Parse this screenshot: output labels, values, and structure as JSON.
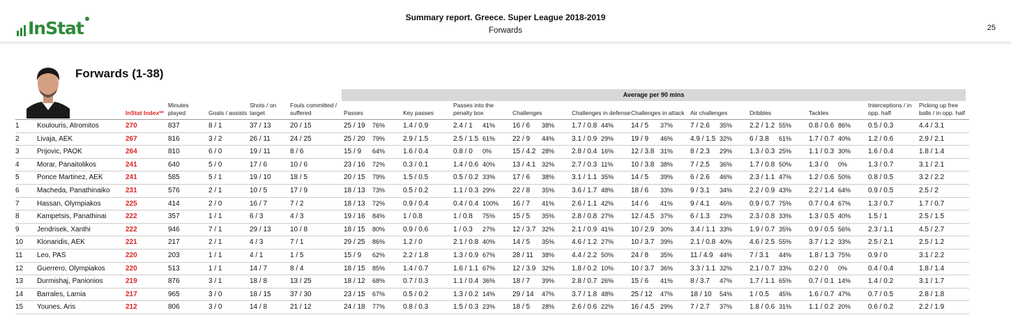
{
  "header": {
    "title": "Summary report. Greece. Super League 2018-2019",
    "subtitle": "Forwards",
    "page_number": "25",
    "logo_text": "InStat"
  },
  "section_title": "Forwards (1-38)",
  "group_header": "Average per 90 mins",
  "columns": {
    "instat_index": "InStat Index**",
    "minutes": "Minutes played",
    "goals": "Goals / assists",
    "shots": "Shots / on target",
    "fouls": "Fouls committed / suffered",
    "passes": "Passes",
    "key_passes": "Key passes",
    "passes_box": "Passes into the penalty box",
    "challenges": "Challenges",
    "ch_def": "Challenges in defense",
    "ch_att": "Challenges in attack",
    "air": "Air challenges",
    "dribbles": "Dribbles",
    "tackles": "Tackles",
    "interceptions": "Interceptions / in opp. half",
    "free_balls": "Picking up free balls / in opp. half"
  },
  "rows": [
    {
      "n": "1",
      "name": "Koulouris, Atromitos",
      "idx": "270",
      "min": "837",
      "ga": "8 / 1",
      "shots": "37 / 13",
      "fouls": "20 / 15",
      "passes": "25 / 19",
      "passes_p": "76%",
      "kp": "1.4 / 0.9",
      "pb": "2.4 / 1",
      "pb_p": "41%",
      "ch": "16 / 6",
      "ch_p": "38%",
      "cd": "1.7 / 0.8",
      "cd_p": "44%",
      "ca": "14 / 5",
      "ca_p": "37%",
      "air": "7 / 2.6",
      "air_p": "35%",
      "dr": "2.2 / 1.2",
      "dr_p": "55%",
      "tk": "0.8 / 0.6",
      "tk_p": "86%",
      "int": "0.5 / 0.3",
      "fb": "4.4 / 3.1"
    },
    {
      "n": "2",
      "name": "Livaja, AEK",
      "idx": "267",
      "min": "816",
      "ga": "3 / 2",
      "shots": "26 / 11",
      "fouls": "24 / 25",
      "passes": "25 / 20",
      "passes_p": "79%",
      "kp": "2.9 / 1.5",
      "pb": "2.5 / 1.5",
      "pb_p": "61%",
      "ch": "22 / 9",
      "ch_p": "44%",
      "cd": "3.1 / 0.9",
      "cd_p": "29%",
      "ca": "19 / 9",
      "ca_p": "46%",
      "air": "4.9 / 1.5",
      "air_p": "32%",
      "dr": "6 / 3.8",
      "dr_p": "61%",
      "tk": "1.7 / 0.7",
      "tk_p": "40%",
      "int": "1.2 / 0.6",
      "fb": "2.9 / 2.1"
    },
    {
      "n": "3",
      "name": "Prijovic, PAOK",
      "idx": "264",
      "min": "810",
      "ga": "6 / 0",
      "shots": "19 / 11",
      "fouls": "8 / 6",
      "passes": "15 / 9",
      "passes_p": "64%",
      "kp": "1.6 / 0.4",
      "pb": "0.8 / 0",
      "pb_p": "0%",
      "ch": "15 / 4.2",
      "ch_p": "28%",
      "cd": "2.8 / 0.4",
      "cd_p": "16%",
      "ca": "12 / 3.8",
      "ca_p": "31%",
      "air": "8 / 2.3",
      "air_p": "29%",
      "dr": "1.3 / 0.3",
      "dr_p": "25%",
      "tk": "1.1 / 0.3",
      "tk_p": "30%",
      "int": "1.6 / 0.4",
      "fb": "1.8 / 1.4"
    },
    {
      "n": "4",
      "name": "Morar, Panaitolikos",
      "idx": "241",
      "min": "640",
      "ga": "5 / 0",
      "shots": "17 / 6",
      "fouls": "10 / 6",
      "passes": "23 / 16",
      "passes_p": "72%",
      "kp": "0.3 / 0.1",
      "pb": "1.4 / 0.6",
      "pb_p": "40%",
      "ch": "13 / 4.1",
      "ch_p": "32%",
      "cd": "2.7 / 0.3",
      "cd_p": "11%",
      "ca": "10 / 3.8",
      "ca_p": "38%",
      "air": "7 / 2.5",
      "air_p": "36%",
      "dr": "1.7 / 0.8",
      "dr_p": "50%",
      "tk": "1.3 / 0",
      "tk_p": "0%",
      "int": "1.3 / 0.7",
      "fb": "3.1 / 2.1"
    },
    {
      "n": "5",
      "name": "Ponce Martinez, AEK",
      "idx": "241",
      "min": "585",
      "ga": "5 / 1",
      "shots": "19 / 10",
      "fouls": "18 / 5",
      "passes": "20 / 15",
      "passes_p": "79%",
      "kp": "1.5 / 0.5",
      "pb": "0.5 / 0.2",
      "pb_p": "33%",
      "ch": "17 / 6",
      "ch_p": "38%",
      "cd": "3.1 / 1.1",
      "cd_p": "35%",
      "ca": "14 / 5",
      "ca_p": "39%",
      "air": "6 / 2.6",
      "air_p": "46%",
      "dr": "2.3 / 1.1",
      "dr_p": "47%",
      "tk": "1.2 / 0.6",
      "tk_p": "50%",
      "int": "0.8 / 0.5",
      "fb": "3.2 / 2.2"
    },
    {
      "n": "6",
      "name": "Macheda, Panathinaiko",
      "idx": "231",
      "min": "576",
      "ga": "2 / 1",
      "shots": "10 / 5",
      "fouls": "17 / 9",
      "passes": "18 / 13",
      "passes_p": "73%",
      "kp": "0.5 / 0.2",
      "pb": "1.1 / 0.3",
      "pb_p": "29%",
      "ch": "22 / 8",
      "ch_p": "35%",
      "cd": "3.6 / 1.7",
      "cd_p": "48%",
      "ca": "18 / 6",
      "ca_p": "33%",
      "air": "9 / 3.1",
      "air_p": "34%",
      "dr": "2.2 / 0.9",
      "dr_p": "43%",
      "tk": "2.2 / 1.4",
      "tk_p": "64%",
      "int": "0.9 / 0.5",
      "fb": "2.5 / 2"
    },
    {
      "n": "7",
      "name": "Hassan, Olympiakos",
      "idx": "225",
      "min": "414",
      "ga": "2 / 0",
      "shots": "16 / 7",
      "fouls": "7 / 2",
      "passes": "18 / 13",
      "passes_p": "72%",
      "kp": "0.9 / 0.4",
      "pb": "0.4 / 0.4",
      "pb_p": "100%",
      "ch": "16 / 7",
      "ch_p": "41%",
      "cd": "2.6 / 1.1",
      "cd_p": "42%",
      "ca": "14 / 6",
      "ca_p": "41%",
      "air": "9 / 4.1",
      "air_p": "46%",
      "dr": "0.9 / 0.7",
      "dr_p": "75%",
      "tk": "0.7 / 0.4",
      "tk_p": "67%",
      "int": "1.3 / 0.7",
      "fb": "1.7 / 0.7"
    },
    {
      "n": "8",
      "name": "Kampetsis, Panathinai",
      "idx": "222",
      "min": "357",
      "ga": "1 / 1",
      "shots": "6 / 3",
      "fouls": "4 / 3",
      "passes": "19 / 16",
      "passes_p": "84%",
      "kp": "1 / 0.8",
      "pb": "1 / 0.8",
      "pb_p": "75%",
      "ch": "15 / 5",
      "ch_p": "35%",
      "cd": "2.8 / 0.8",
      "cd_p": "27%",
      "ca": "12 / 4.5",
      "ca_p": "37%",
      "air": "6 / 1.3",
      "air_p": "23%",
      "dr": "2.3 / 0.8",
      "dr_p": "33%",
      "tk": "1.3 / 0.5",
      "tk_p": "40%",
      "int": "1.5 / 1",
      "fb": "2.5 / 1.5"
    },
    {
      "n": "9",
      "name": "Jendrisek, Xanthi",
      "idx": "222",
      "min": "946",
      "ga": "7 / 1",
      "shots": "29 / 13",
      "fouls": "10 / 8",
      "passes": "18 / 15",
      "passes_p": "80%",
      "kp": "0.9 / 0.6",
      "pb": "1 / 0.3",
      "pb_p": "27%",
      "ch": "12 / 3.7",
      "ch_p": "32%",
      "cd": "2.1 / 0.9",
      "cd_p": "41%",
      "ca": "10 / 2.9",
      "ca_p": "30%",
      "air": "3.4 / 1.1",
      "air_p": "33%",
      "dr": "1.9 / 0.7",
      "dr_p": "35%",
      "tk": "0.9 / 0.5",
      "tk_p": "56%",
      "int": "2.3 / 1.1",
      "fb": "4.5 / 2.7"
    },
    {
      "n": "10",
      "name": "Klonaridis, AEK",
      "idx": "221",
      "min": "217",
      "ga": "2 / 1",
      "shots": "4 / 3",
      "fouls": "7 / 1",
      "passes": "29 / 25",
      "passes_p": "86%",
      "kp": "1.2 / 0",
      "pb": "2.1 / 0.8",
      "pb_p": "40%",
      "ch": "14 / 5",
      "ch_p": "35%",
      "cd": "4.6 / 1.2",
      "cd_p": "27%",
      "ca": "10 / 3.7",
      "ca_p": "39%",
      "air": "2.1 / 0.8",
      "air_p": "40%",
      "dr": "4.6 / 2.5",
      "dr_p": "55%",
      "tk": "3.7 / 1.2",
      "tk_p": "33%",
      "int": "2.5 / 2.1",
      "fb": "2.5 / 1.2"
    },
    {
      "n": "11",
      "name": "Leo, PAS",
      "idx": "220",
      "min": "203",
      "ga": "1 / 1",
      "shots": "4 / 1",
      "fouls": "1 / 5",
      "passes": "15 / 9",
      "passes_p": "62%",
      "kp": "2.2 / 1.8",
      "pb": "1.3 / 0.9",
      "pb_p": "67%",
      "ch": "28 / 11",
      "ch_p": "38%",
      "cd": "4.4 / 2.2",
      "cd_p": "50%",
      "ca": "24 / 8",
      "ca_p": "35%",
      "air": "11 / 4.9",
      "air_p": "44%",
      "dr": "7 / 3.1",
      "dr_p": "44%",
      "tk": "1.8 / 1.3",
      "tk_p": "75%",
      "int": "0.9 / 0",
      "fb": "3.1 / 2.2"
    },
    {
      "n": "12",
      "name": "Guerrero, Olympiakos",
      "idx": "220",
      "min": "513",
      "ga": "1 / 1",
      "shots": "14 / 7",
      "fouls": "8 / 4",
      "passes": "18 / 15",
      "passes_p": "85%",
      "kp": "1.4 / 0.7",
      "pb": "1.6 / 1.1",
      "pb_p": "67%",
      "ch": "12 / 3.9",
      "ch_p": "32%",
      "cd": "1.8 / 0.2",
      "cd_p": "10%",
      "ca": "10 / 3.7",
      "ca_p": "36%",
      "air": "3.3 / 1.1",
      "air_p": "32%",
      "dr": "2.1 / 0.7",
      "dr_p": "33%",
      "tk": "0.2 / 0",
      "tk_p": "0%",
      "int": "0.4 / 0.4",
      "fb": "1.8 / 1.4"
    },
    {
      "n": "13",
      "name": "Durmishaj, Panionios",
      "idx": "219",
      "min": "876",
      "ga": "3 / 1",
      "shots": "18 / 8",
      "fouls": "13 / 25",
      "passes": "18 / 12",
      "passes_p": "68%",
      "kp": "0.7 / 0.3",
      "pb": "1.1 / 0.4",
      "pb_p": "36%",
      "ch": "18 / 7",
      "ch_p": "39%",
      "cd": "2.8 / 0.7",
      "cd_p": "26%",
      "ca": "15 / 6",
      "ca_p": "41%",
      "air": "8 / 3.7",
      "air_p": "47%",
      "dr": "1.7 / 1.1",
      "dr_p": "65%",
      "tk": "0.7 / 0.1",
      "tk_p": "14%",
      "int": "1.4 / 0.2",
      "fb": "3.1 / 1.7"
    },
    {
      "n": "14",
      "name": "Barrales, Lamia",
      "idx": "217",
      "min": "965",
      "ga": "3 / 0",
      "shots": "18 / 15",
      "fouls": "37 / 30",
      "passes": "23 / 15",
      "passes_p": "67%",
      "kp": "0.5 / 0.2",
      "pb": "1.3 / 0.2",
      "pb_p": "14%",
      "ch": "29 / 14",
      "ch_p": "47%",
      "cd": "3.7 / 1.8",
      "cd_p": "48%",
      "ca": "25 / 12",
      "ca_p": "47%",
      "air": "18 / 10",
      "air_p": "54%",
      "dr": "1 / 0.5",
      "dr_p": "45%",
      "tk": "1.6 / 0.7",
      "tk_p": "47%",
      "int": "0.7 / 0.5",
      "fb": "2.8 / 1.8"
    },
    {
      "n": "15",
      "name": "Younes, Aris",
      "idx": "212",
      "min": "806",
      "ga": "3 / 0",
      "shots": "14 / 8",
      "fouls": "21 / 12",
      "passes": "24 / 18",
      "passes_p": "77%",
      "kp": "0.8 / 0.3",
      "pb": "1.5 / 0.3",
      "pb_p": "23%",
      "ch": "18 / 5",
      "ch_p": "28%",
      "cd": "2.6 / 0.6",
      "cd_p": "22%",
      "ca": "16 / 4.5",
      "ca_p": "29%",
      "air": "7 / 2.7",
      "air_p": "37%",
      "dr": "1.8 / 0.6",
      "dr_p": "31%",
      "tk": "1.1 / 0.2",
      "tk_p": "20%",
      "int": "0.6 / 0.2",
      "fb": "2.2 / 1.9"
    }
  ]
}
